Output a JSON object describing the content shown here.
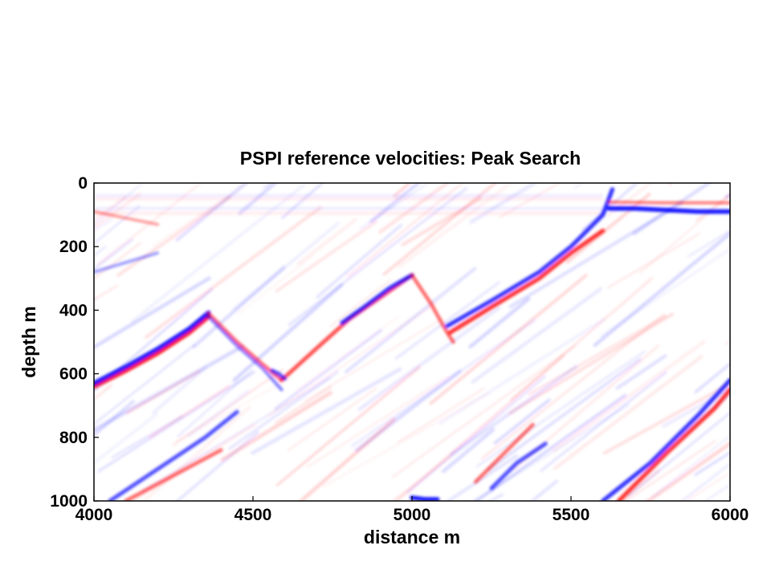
{
  "chart_data": {
    "type": "heatmap",
    "title": "PSPI reference velocities: Peak Search",
    "xlabel": "distance m",
    "ylabel": "depth m",
    "xlim": [
      4000,
      6000
    ],
    "ylim": [
      0,
      1000
    ],
    "y_reversed": true,
    "xticks": [
      "4000",
      "4500",
      "5000",
      "5500",
      "6000"
    ],
    "yticks": [
      "0",
      "200",
      "400",
      "600",
      "800",
      "1000"
    ],
    "colormap": {
      "negative": "#0000ff",
      "zero": "#ffffff",
      "positive": "#ff0000"
    },
    "grid": false,
    "reflectors": [
      {
        "polarity": "positive",
        "amplitude": 0.9,
        "points": [
          [
            4000,
            640
          ],
          [
            4100,
            590
          ],
          [
            4200,
            535
          ],
          [
            4300,
            470
          ],
          [
            4360,
            420
          ]
        ]
      },
      {
        "polarity": "negative",
        "amplitude": 0.9,
        "points": [
          [
            4000,
            630
          ],
          [
            4100,
            578
          ],
          [
            4200,
            522
          ],
          [
            4300,
            458
          ],
          [
            4360,
            408
          ]
        ]
      },
      {
        "polarity": "positive",
        "amplitude": 0.6,
        "points": [
          [
            4360,
            410
          ],
          [
            4450,
            500
          ],
          [
            4530,
            570
          ],
          [
            4590,
            620
          ]
        ]
      },
      {
        "polarity": "negative",
        "amplitude": 0.5,
        "points": [
          [
            4360,
            420
          ],
          [
            4450,
            512
          ],
          [
            4530,
            582
          ],
          [
            4590,
            650
          ]
        ]
      },
      {
        "polarity": "positive",
        "amplitude": 0.7,
        "points": [
          [
            4590,
            620
          ],
          [
            4700,
            520
          ],
          [
            4800,
            430
          ],
          [
            4900,
            360
          ],
          [
            5000,
            290
          ]
        ]
      },
      {
        "polarity": "negative",
        "amplitude": 0.8,
        "points": [
          [
            4780,
            440
          ],
          [
            4850,
            390
          ],
          [
            4930,
            330
          ],
          [
            5000,
            290
          ]
        ]
      },
      {
        "polarity": "positive",
        "amplitude": 0.6,
        "points": [
          [
            5000,
            290
          ],
          [
            5060,
            380
          ],
          [
            5110,
            470
          ],
          [
            5130,
            500
          ]
        ]
      },
      {
        "polarity": "positive",
        "amplitude": 0.8,
        "points": [
          [
            5120,
            470
          ],
          [
            5250,
            390
          ],
          [
            5400,
            300
          ],
          [
            5500,
            220
          ],
          [
            5600,
            150
          ]
        ]
      },
      {
        "polarity": "negative",
        "amplitude": 0.8,
        "points": [
          [
            5110,
            450
          ],
          [
            5250,
            370
          ],
          [
            5400,
            280
          ],
          [
            5500,
            200
          ],
          [
            5600,
            100
          ],
          [
            5630,
            20
          ]
        ]
      },
      {
        "polarity": "negative",
        "amplitude": 0.9,
        "points": [
          [
            5620,
            80
          ],
          [
            5700,
            80
          ],
          [
            5800,
            85
          ],
          [
            5900,
            90
          ],
          [
            6000,
            90
          ]
        ]
      },
      {
        "polarity": "positive",
        "amplitude": 0.5,
        "points": [
          [
            5620,
            60
          ],
          [
            5800,
            62
          ],
          [
            6000,
            62
          ]
        ]
      },
      {
        "polarity": "negative",
        "amplitude": 0.8,
        "points": [
          [
            5600,
            1000
          ],
          [
            5750,
            880
          ],
          [
            5900,
            730
          ],
          [
            6000,
            620
          ]
        ]
      },
      {
        "polarity": "positive",
        "amplitude": 0.8,
        "points": [
          [
            5650,
            1000
          ],
          [
            5800,
            850
          ],
          [
            5950,
            710
          ],
          [
            6000,
            650
          ]
        ]
      },
      {
        "polarity": "negative",
        "amplitude": 0.7,
        "points": [
          [
            4050,
            1000
          ],
          [
            4200,
            900
          ],
          [
            4350,
            800
          ],
          [
            4450,
            720
          ]
        ]
      },
      {
        "polarity": "positive",
        "amplitude": 0.6,
        "points": [
          [
            4100,
            1000
          ],
          [
            4250,
            920
          ],
          [
            4400,
            840
          ]
        ]
      },
      {
        "polarity": "positive",
        "amplitude": 0.6,
        "points": [
          [
            5200,
            940
          ],
          [
            5300,
            840
          ],
          [
            5380,
            760
          ]
        ]
      },
      {
        "polarity": "negative",
        "amplitude": 0.7,
        "points": [
          [
            5250,
            960
          ],
          [
            5330,
            880
          ],
          [
            5420,
            820
          ]
        ]
      },
      {
        "polarity": "negative",
        "amplitude": 0.7,
        "points": [
          [
            4560,
            590
          ],
          [
            4580,
            600
          ],
          [
            4600,
            615
          ]
        ]
      },
      {
        "polarity": "negative",
        "amplitude": 0.9,
        "points": [
          [
            5000,
            990
          ],
          [
            5040,
            995
          ],
          [
            5080,
            995
          ]
        ]
      },
      {
        "polarity": "positive",
        "amplitude": 0.4,
        "points": [
          [
            4000,
            90
          ],
          [
            4100,
            110
          ],
          [
            4200,
            130
          ]
        ]
      },
      {
        "polarity": "negative",
        "amplitude": 0.4,
        "points": [
          [
            4000,
            280
          ],
          [
            4100,
            250
          ],
          [
            4200,
            220
          ]
        ]
      }
    ]
  }
}
